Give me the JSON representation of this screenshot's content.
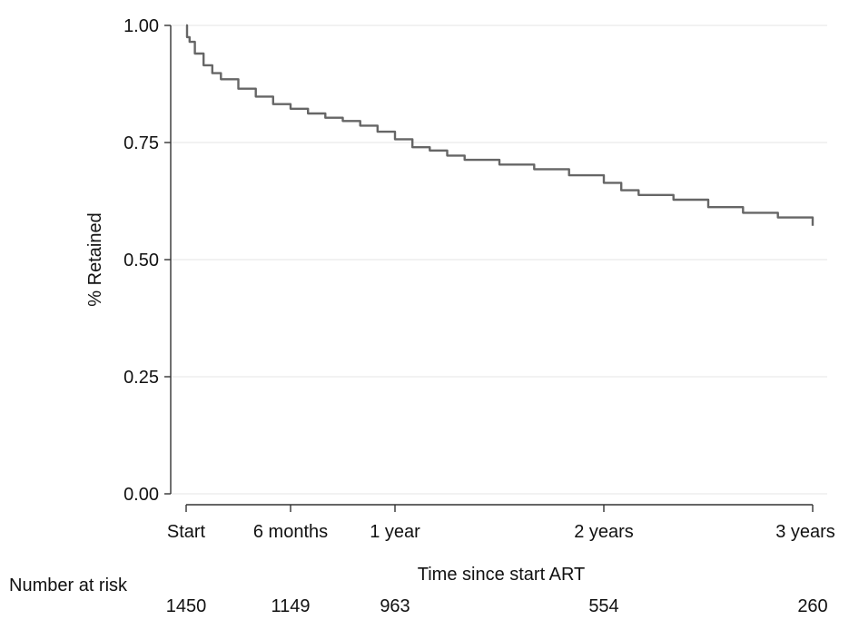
{
  "chart_data": {
    "type": "line",
    "title": "",
    "xlabel": "Time since start ART",
    "ylabel": "% Retained",
    "xlim": [
      0,
      36
    ],
    "ylim": [
      0,
      1
    ],
    "grid": true,
    "x_ticks": [
      {
        "value": 0,
        "label": "Start"
      },
      {
        "value": 6,
        "label": "6 months"
      },
      {
        "value": 12,
        "label": "1 year"
      },
      {
        "value": 24,
        "label": "2 years"
      },
      {
        "value": 36,
        "label": "3 years"
      }
    ],
    "y_ticks": [
      {
        "value": 0,
        "label": "0.00"
      },
      {
        "value": 0.25,
        "label": "0.25"
      },
      {
        "value": 0.5,
        "label": "0.50"
      },
      {
        "value": 0.75,
        "label": "0.75"
      },
      {
        "value": 1,
        "label": "1.00"
      }
    ],
    "series": [
      {
        "color": "#666666",
        "x": [
          0,
          0.05,
          0.2,
          0.5,
          1,
          1.5,
          2,
          3,
          4,
          5,
          6,
          7,
          8,
          9,
          10,
          11,
          12,
          13,
          14,
          15,
          16,
          18,
          20,
          22,
          24,
          25,
          26,
          28,
          30,
          32,
          34,
          36
        ],
        "y": [
          1.0,
          0.975,
          0.965,
          0.94,
          0.915,
          0.898,
          0.885,
          0.865,
          0.848,
          0.832,
          0.822,
          0.812,
          0.803,
          0.796,
          0.786,
          0.773,
          0.757,
          0.74,
          0.733,
          0.722,
          0.713,
          0.703,
          0.693,
          0.68,
          0.664,
          0.648,
          0.638,
          0.628,
          0.612,
          0.6,
          0.59,
          0.572
        ]
      }
    ]
  },
  "risk_table": {
    "label": "Number at risk",
    "counts": [
      {
        "x": 0,
        "count": "1450"
      },
      {
        "x": 6,
        "count": "1149"
      },
      {
        "x": 12,
        "count": "963"
      },
      {
        "x": 24,
        "count": "554"
      },
      {
        "x": 36,
        "count": "260"
      }
    ]
  }
}
